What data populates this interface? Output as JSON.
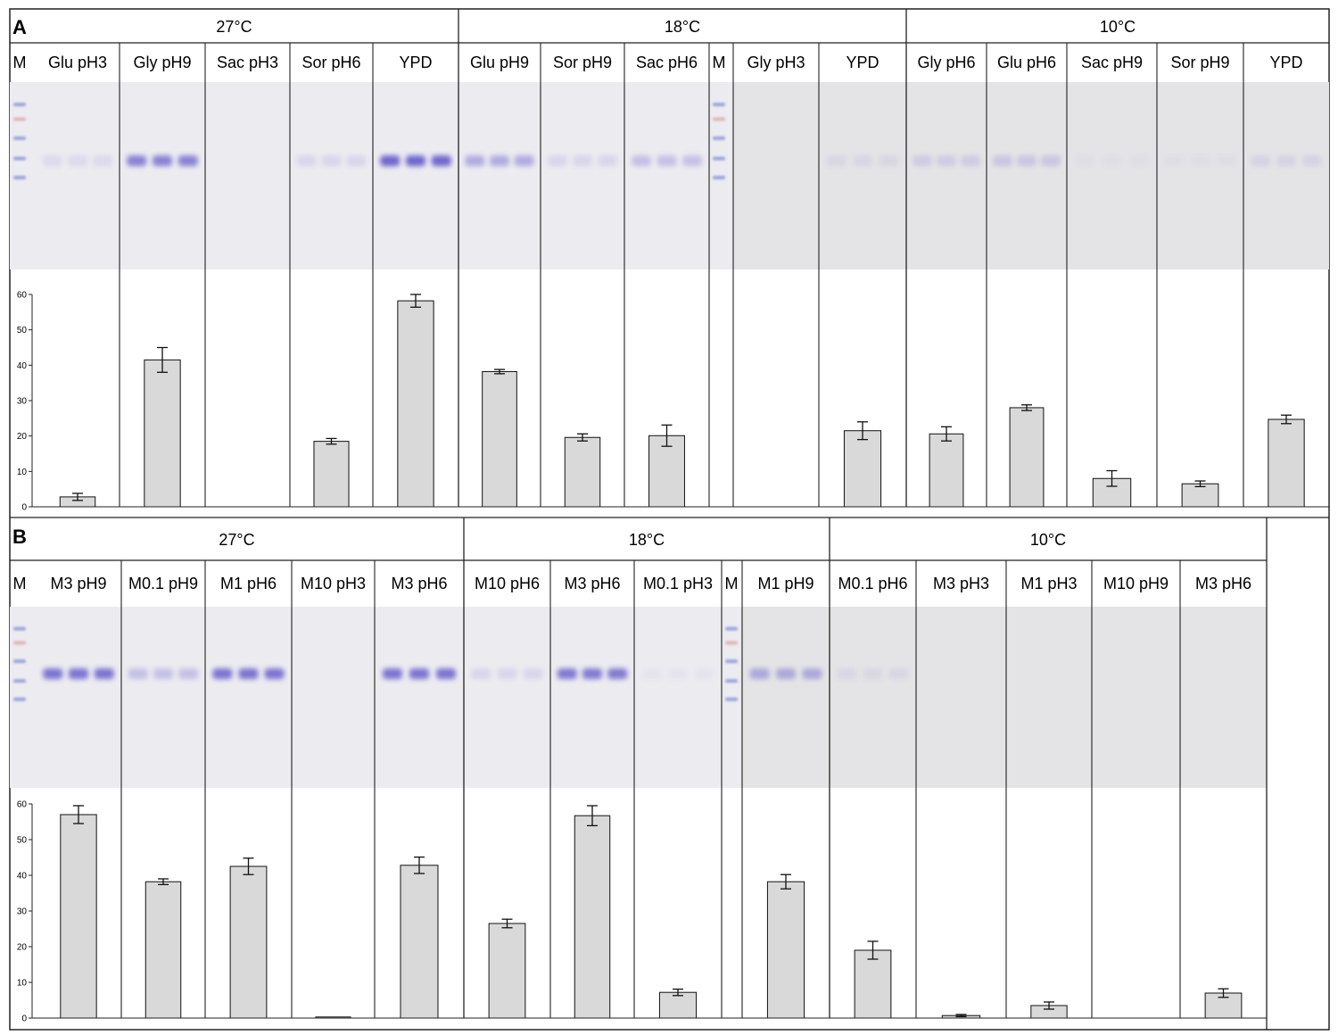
{
  "chart_data": [
    {
      "panel": "A",
      "type": "bar",
      "temperature_groups": [
        {
          "label": "27°C",
          "lanes": [
            "Glu pH3",
            "Gly pH9",
            "Sac pH3",
            "Sor pH6",
            "YPD"
          ]
        },
        {
          "label": "18°C",
          "lanes": [
            "Glu pH9",
            "Sor pH9",
            "Sac pH6",
            "Gly pH3",
            "YPD"
          ]
        },
        {
          "label": "10°C",
          "lanes": [
            "Gly pH6",
            "Glu pH6",
            "Sac pH9",
            "Sor pH9",
            "YPD"
          ]
        }
      ],
      "marker_label": "M",
      "categories": [
        "Glu pH3",
        "Gly pH9",
        "Sac pH3",
        "Sor pH6",
        "YPD",
        "Glu pH9",
        "Sor pH9",
        "Sac pH6",
        "Gly pH3",
        "YPD",
        "Gly pH6",
        "Glu pH6",
        "Sac pH9",
        "Sor pH9",
        "YPD"
      ],
      "values": [
        2.8,
        41.5,
        0,
        18.5,
        58.2,
        38.2,
        19.6,
        20.1,
        0,
        21.5,
        20.6,
        28.0,
        8.0,
        6.5,
        24.7
      ],
      "errors": [
        1.0,
        3.5,
        0,
        0.8,
        1.8,
        0.6,
        1.0,
        3.0,
        0,
        2.5,
        2.0,
        0.8,
        2.2,
        0.8,
        1.2
      ],
      "band_intensity": [
        0.12,
        0.75,
        0.0,
        0.15,
        0.95,
        0.45,
        0.15,
        0.3,
        0.0,
        0.1,
        0.18,
        0.22,
        0.04,
        0.05,
        0.12
      ],
      "ylim": [
        0,
        60
      ],
      "yticks": [
        0,
        10,
        20,
        30,
        40,
        50,
        60
      ],
      "title": "",
      "xlabel": "",
      "ylabel": ""
    },
    {
      "panel": "B",
      "type": "bar",
      "temperature_groups": [
        {
          "label": "27°C",
          "lanes": [
            "M3 pH9",
            "M0.1 pH9",
            "M1 pH6",
            "M10 pH3",
            "M3 pH6"
          ]
        },
        {
          "label": "18°C",
          "lanes": [
            "M10 pH6",
            "M3 pH6",
            "M0.1 pH3",
            "M1 pH9"
          ]
        },
        {
          "label": "10°C",
          "lanes": [
            "M0.1 pH6",
            "M3 pH3",
            "M1 pH3",
            "M10 pH9",
            "M3 pH6"
          ]
        }
      ],
      "marker_label": "M",
      "categories": [
        "M3 pH9",
        "M0.1 pH9",
        "M1 pH6",
        "M10 pH3",
        "M3 pH6",
        "M10 pH6",
        "M3 pH6",
        "M0.1 pH3",
        "M1 pH9",
        "M0.1 pH6",
        "M3 pH3",
        "M1 pH3",
        "M10 pH9",
        "M3 pH6"
      ],
      "values": [
        57.0,
        38.2,
        42.5,
        0.3,
        42.8,
        26.5,
        56.7,
        7.2,
        38.2,
        19.0,
        0.7,
        3.5,
        0,
        7.0
      ],
      "errors": [
        2.5,
        0.8,
        2.3,
        0,
        2.3,
        1.2,
        2.8,
        0.9,
        2.0,
        2.5,
        0.3,
        1.0,
        0,
        1.2
      ],
      "band_intensity": [
        0.85,
        0.3,
        0.85,
        0.0,
        0.85,
        0.15,
        0.8,
        0.05,
        0.45,
        0.1,
        0.0,
        0.0,
        0.0,
        0.0
      ],
      "ylim": [
        0,
        60
      ],
      "yticks": [
        0,
        10,
        20,
        30,
        40,
        50,
        60
      ],
      "title": "",
      "xlabel": "",
      "ylabel": ""
    }
  ],
  "panel_labels": {
    "a": "A",
    "b": "B"
  }
}
